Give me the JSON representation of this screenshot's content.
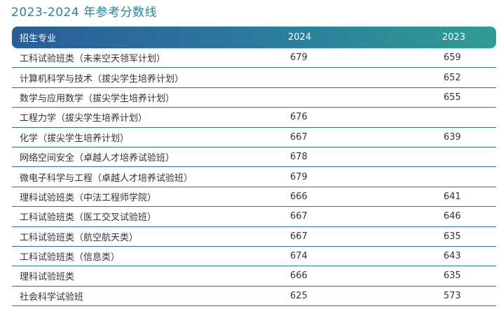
{
  "title": "2023-2024 年参考分数线",
  "table": {
    "headers": [
      "招生专业",
      "2024",
      "2023"
    ],
    "rows": [
      {
        "major": "工科试验班类（未来空天领军计划）",
        "y2024": "679",
        "y2023": "659"
      },
      {
        "major": "计算机科学与技术（拔尖学生培养计划）",
        "y2024": "",
        "y2023": "652"
      },
      {
        "major": "数学与应用数学（拔尖学生培养计划）",
        "y2024": "",
        "y2023": "655"
      },
      {
        "major": "工程力学（拔尖学生培养计划）",
        "y2024": "676",
        "y2023": ""
      },
      {
        "major": "化学（拔尖学生培养计划）",
        "y2024": "667",
        "y2023": "639"
      },
      {
        "major": "网络空间安全（卓越人才培养试验班）",
        "y2024": "678",
        "y2023": ""
      },
      {
        "major": "微电子科学与工程（卓越人才培养试验班）",
        "y2024": "679",
        "y2023": ""
      },
      {
        "major": "理科试验班类（中法工程师学院）",
        "y2024": "666",
        "y2023": "641"
      },
      {
        "major": "工科试验班类（医工交叉试验班）",
        "y2024": "667",
        "y2023": "646"
      },
      {
        "major": "工科试验班类（航空航天类）",
        "y2024": "667",
        "y2023": "635"
      },
      {
        "major": "工科试验班类（信息类）",
        "y2024": "674",
        "y2023": "643"
      },
      {
        "major": "理科试验班类",
        "y2024": "666",
        "y2023": "635"
      },
      {
        "major": "社会科学试验班",
        "y2024": "625",
        "y2023": "573"
      }
    ]
  },
  "colors": {
    "title": "#27839b",
    "header_gradient_start": "#2a5d96",
    "header_gradient_end": "#2f9c92",
    "row_divider": "#2e6f9a"
  }
}
